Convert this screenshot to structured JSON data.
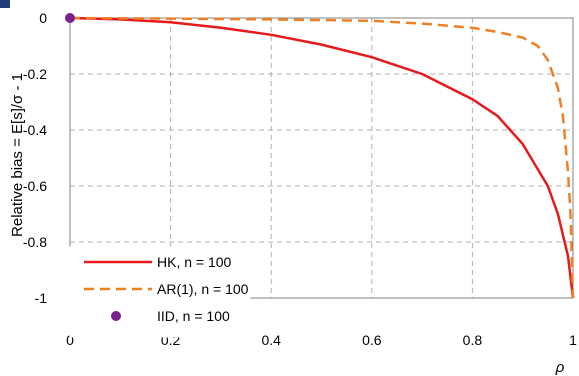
{
  "chart_data": {
    "type": "line",
    "xlabel": "ρ",
    "ylabel": "Relative bias = E[s]/σ - 1",
    "xlim": [
      0,
      1
    ],
    "ylim": [
      -1,
      0
    ],
    "x_ticks": [
      "0",
      "0.2",
      "0.4",
      "0.6",
      "0.8",
      "1"
    ],
    "y_ticks": [
      "0",
      "-0.2",
      "-0.4",
      "-0.6",
      "-0.8",
      "-1"
    ],
    "grid": true,
    "legend_position": "bottom-left",
    "series": [
      {
        "name": "HK, n = 100",
        "style": "solid",
        "color": "#e8191c",
        "points": [
          [
            0,
            0
          ],
          [
            0.1,
            -0.005
          ],
          [
            0.2,
            -0.015
          ],
          [
            0.3,
            -0.035
          ],
          [
            0.4,
            -0.06
          ],
          [
            0.5,
            -0.095
          ],
          [
            0.6,
            -0.14
          ],
          [
            0.7,
            -0.2
          ],
          [
            0.8,
            -0.29
          ],
          [
            0.85,
            -0.35
          ],
          [
            0.9,
            -0.45
          ],
          [
            0.95,
            -0.6
          ],
          [
            0.97,
            -0.7
          ],
          [
            0.99,
            -0.85
          ],
          [
            1,
            -1
          ]
        ]
      },
      {
        "name": "AR(1), n = 100",
        "style": "dashed",
        "color": "#f07f24",
        "points": [
          [
            0,
            0
          ],
          [
            0.2,
            -0.002
          ],
          [
            0.4,
            -0.005
          ],
          [
            0.6,
            -0.01
          ],
          [
            0.7,
            -0.02
          ],
          [
            0.8,
            -0.035
          ],
          [
            0.85,
            -0.05
          ],
          [
            0.9,
            -0.07
          ],
          [
            0.93,
            -0.1
          ],
          [
            0.95,
            -0.15
          ],
          [
            0.97,
            -0.25
          ],
          [
            0.98,
            -0.35
          ],
          [
            0.99,
            -0.55
          ],
          [
            0.995,
            -0.7
          ],
          [
            1,
            -1
          ]
        ]
      },
      {
        "name": "IID, n = 100",
        "style": "marker",
        "color": "#7b1f8a",
        "points": [
          [
            0,
            0
          ]
        ]
      }
    ]
  }
}
